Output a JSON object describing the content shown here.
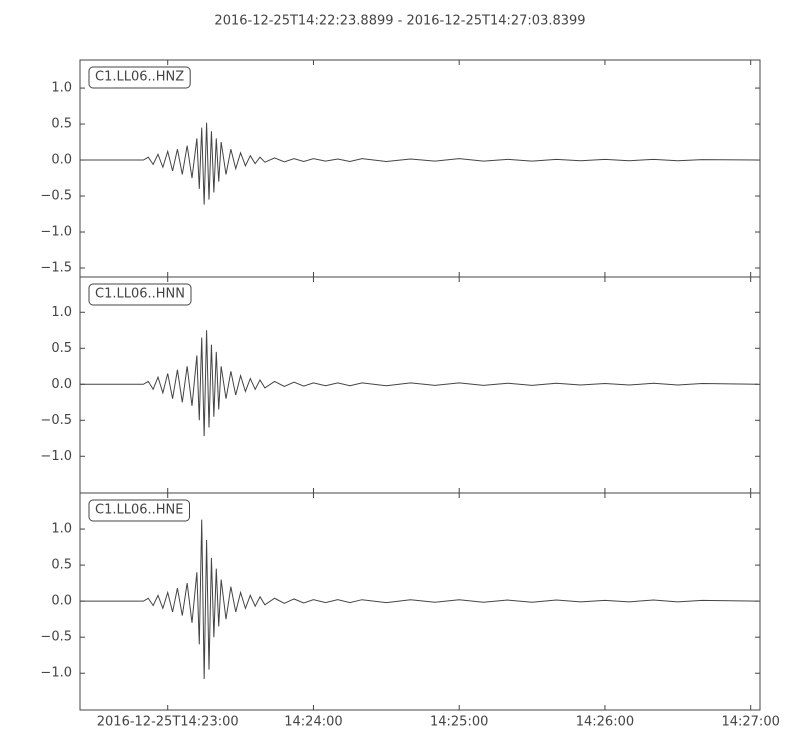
{
  "chart_data": [
    {
      "type": "line",
      "title": "2016-12-25T14:22:23.8899  -  2016-12-25T14:27:03.8399",
      "xlim": [
        "14:22:23.8899",
        "14:27:03.8399"
      ],
      "ylim": [
        -1.625,
        1.39
      ],
      "yticks": [
        {
          "value": 1,
          "label": "1.0"
        },
        {
          "value": 0.5,
          "label": "0.5"
        },
        {
          "value": 0,
          "label": "0.0"
        },
        {
          "value": -0.5,
          "label": "−0.5"
        },
        {
          "value": -1,
          "label": "−1.0"
        },
        {
          "value": -1.5,
          "label": "−1.5"
        }
      ],
      "x": [
        "14:22:24",
        "14:22:50",
        "14:22:52",
        "14:22:54",
        "14:22:56",
        "14:22:58",
        "14:23:00",
        "14:23:02",
        "14:23:04",
        "14:23:06",
        "14:23:08",
        "14:23:10",
        "14:23:12",
        "14:23:13",
        "14:23:14",
        "14:23:15",
        "14:23:16",
        "14:23:17",
        "14:23:18",
        "14:23:19",
        "14:23:20",
        "14:23:21",
        "14:23:22",
        "14:23:24",
        "14:23:26",
        "14:23:28",
        "14:23:30",
        "14:23:32",
        "14:23:34",
        "14:23:36",
        "14:23:38",
        "14:23:40",
        "14:23:44",
        "14:23:48",
        "14:23:52",
        "14:23:56",
        "14:24:00",
        "14:24:05",
        "14:24:10",
        "14:24:15",
        "14:24:20",
        "14:24:30",
        "14:24:40",
        "14:24:50",
        "14:25:00",
        "14:25:10",
        "14:25:20",
        "14:25:30",
        "14:25:40",
        "14:25:50",
        "14:26:00",
        "14:26:10",
        "14:26:20",
        "14:26:30",
        "14:26:40",
        "14:27:03"
      ],
      "series": [
        {
          "name": "C1.LL06..HNZ",
          "color": "#444444",
          "values": [
            0,
            0,
            0.04,
            -0.06,
            0.08,
            -0.1,
            0.12,
            -0.15,
            0.15,
            -0.2,
            0.2,
            -0.25,
            0.3,
            -0.4,
            0.45,
            -0.62,
            0.52,
            -0.55,
            0.4,
            -0.45,
            0.3,
            -0.3,
            0.25,
            -0.2,
            0.15,
            -0.12,
            0.1,
            -0.08,
            0.06,
            -0.05,
            0.04,
            -0.03,
            0.03,
            -0.025,
            0.02,
            -0.02,
            0.02,
            -0.015,
            0.015,
            -0.02,
            0.02,
            -0.02,
            0.015,
            -0.015,
            0.02,
            -0.015,
            0.01,
            -0.015,
            0.01,
            -0.01,
            0.01,
            -0.01,
            0.01,
            -0.01,
            0.005,
            0
          ]
        }
      ]
    },
    {
      "type": "line",
      "xlim": [
        "14:22:23.8899",
        "14:27:03.8399"
      ],
      "ylim": [
        -1.51,
        1.49
      ],
      "yticks": [
        {
          "value": 1,
          "label": "1.0"
        },
        {
          "value": 0.5,
          "label": "0.5"
        },
        {
          "value": 0,
          "label": "0.0"
        },
        {
          "value": -0.5,
          "label": "−0.5"
        },
        {
          "value": -1,
          "label": "−1.0"
        }
      ],
      "x": [
        "14:22:24",
        "14:22:50",
        "14:22:52",
        "14:22:54",
        "14:22:56",
        "14:22:58",
        "14:23:00",
        "14:23:02",
        "14:23:04",
        "14:23:06",
        "14:23:08",
        "14:23:10",
        "14:23:12",
        "14:23:13",
        "14:23:14",
        "14:23:15",
        "14:23:16",
        "14:23:17",
        "14:23:18",
        "14:23:19",
        "14:23:20",
        "14:23:21",
        "14:23:22",
        "14:23:24",
        "14:23:26",
        "14:23:28",
        "14:23:30",
        "14:23:32",
        "14:23:34",
        "14:23:36",
        "14:23:38",
        "14:23:40",
        "14:23:44",
        "14:23:48",
        "14:23:52",
        "14:23:56",
        "14:24:00",
        "14:24:05",
        "14:24:10",
        "14:24:15",
        "14:24:20",
        "14:24:30",
        "14:24:40",
        "14:24:50",
        "14:25:00",
        "14:25:10",
        "14:25:20",
        "14:25:30",
        "14:25:40",
        "14:25:50",
        "14:26:00",
        "14:26:10",
        "14:26:20",
        "14:26:30",
        "14:26:40",
        "14:27:03"
      ],
      "series": [
        {
          "name": "C1.LL06..HNN",
          "color": "#444444",
          "values": [
            0,
            0,
            0.04,
            -0.07,
            0.1,
            -0.12,
            0.15,
            -0.2,
            0.2,
            -0.25,
            0.25,
            -0.3,
            0.4,
            -0.5,
            0.65,
            -0.72,
            0.75,
            -0.6,
            0.55,
            -0.45,
            0.45,
            -0.35,
            0.25,
            -0.2,
            0.18,
            -0.15,
            0.12,
            -0.1,
            0.08,
            -0.07,
            0.06,
            -0.05,
            0.04,
            -0.03,
            0.03,
            -0.025,
            0.02,
            -0.02,
            0.02,
            -0.02,
            0.02,
            -0.02,
            0.02,
            -0.015,
            0.02,
            -0.015,
            0.015,
            -0.015,
            0.015,
            -0.01,
            0.01,
            -0.01,
            0.015,
            -0.01,
            0.01,
            0
          ]
        }
      ]
    },
    {
      "type": "line",
      "xlim": [
        "14:22:23.8899",
        "14:27:03.8399"
      ],
      "ylim": [
        -1.51,
        1.5
      ],
      "yticks": [
        {
          "value": 1,
          "label": "1.0"
        },
        {
          "value": 0.5,
          "label": "0.5"
        },
        {
          "value": 0,
          "label": "0.0"
        },
        {
          "value": -0.5,
          "label": "−0.5"
        },
        {
          "value": -1,
          "label": "−1.0"
        }
      ],
      "xticks": [
        {
          "value": "14:23:00",
          "label": "2016-12-25T14:23:00"
        },
        "14:24:00",
        "14:25:00",
        "14:26:00",
        "14:27:00"
      ],
      "x": [
        "14:22:24",
        "14:22:50",
        "14:22:52",
        "14:22:54",
        "14:22:56",
        "14:22:58",
        "14:23:00",
        "14:23:02",
        "14:23:04",
        "14:23:06",
        "14:23:08",
        "14:23:10",
        "14:23:12",
        "14:23:13",
        "14:23:14",
        "14:23:15",
        "14:23:16",
        "14:23:17",
        "14:23:18",
        "14:23:19",
        "14:23:20",
        "14:23:21",
        "14:23:22",
        "14:23:24",
        "14:23:26",
        "14:23:28",
        "14:23:30",
        "14:23:32",
        "14:23:34",
        "14:23:36",
        "14:23:38",
        "14:23:40",
        "14:23:44",
        "14:23:48",
        "14:23:52",
        "14:23:56",
        "14:24:00",
        "14:24:05",
        "14:24:10",
        "14:24:15",
        "14:24:20",
        "14:24:30",
        "14:24:40",
        "14:24:50",
        "14:25:00",
        "14:25:10",
        "14:25:20",
        "14:25:30",
        "14:25:40",
        "14:25:50",
        "14:26:00",
        "14:26:10",
        "14:26:20",
        "14:26:30",
        "14:26:40",
        "14:27:03"
      ],
      "series": [
        {
          "name": "C1.LL06..HNE",
          "color": "#444444",
          "values": [
            0,
            0,
            0.04,
            -0.06,
            0.08,
            -0.1,
            0.12,
            -0.15,
            0.18,
            -0.2,
            0.25,
            -0.3,
            0.4,
            -0.6,
            1.13,
            -1.08,
            0.85,
            -0.95,
            0.6,
            -0.5,
            0.45,
            -0.35,
            0.3,
            -0.25,
            0.2,
            -0.15,
            0.12,
            -0.1,
            0.08,
            -0.07,
            0.06,
            -0.05,
            0.04,
            -0.03,
            0.03,
            -0.025,
            0.02,
            -0.02,
            0.02,
            -0.02,
            0.02,
            -0.02,
            0.02,
            -0.015,
            0.02,
            -0.015,
            0.015,
            -0.015,
            0.015,
            -0.01,
            0.01,
            -0.01,
            0.015,
            -0.01,
            0.01,
            0
          ]
        }
      ]
    }
  ]
}
